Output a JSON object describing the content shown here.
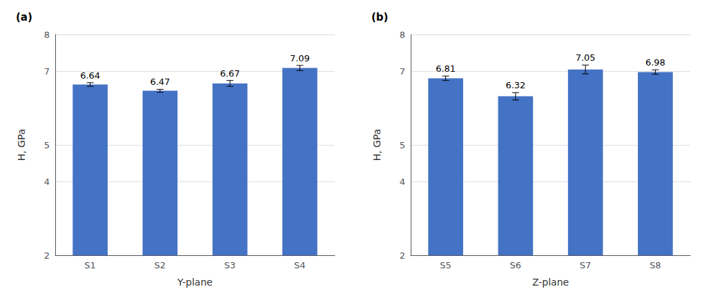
{
  "chart_data": [
    {
      "type": "bar",
      "title": "(a)",
      "categories": [
        "S1",
        "S2",
        "S3",
        "S4"
      ],
      "values": [
        6.64,
        6.47,
        6.67,
        7.09
      ],
      "errors": [
        0.05,
        0.04,
        0.08,
        0.07
      ],
      "xlabel": "Y-plane",
      "ylabel": "H, GPa",
      "color": "#4472C4",
      "ylim": [
        2,
        8
      ],
      "yticks": [
        2,
        4,
        5,
        7,
        8
      ],
      "grid": true,
      "data_labels": true
    },
    {
      "type": "bar",
      "title": "(b)",
      "categories": [
        "S5",
        "S6",
        "S7",
        "S8"
      ],
      "values": [
        6.81,
        6.32,
        7.05,
        6.98
      ],
      "errors": [
        0.06,
        0.1,
        0.12,
        0.06
      ],
      "xlabel": "Z-plane",
      "ylabel": "H, GPa",
      "color": "#4472C4",
      "ylim": [
        2,
        8
      ],
      "yticks": [
        2,
        4,
        5,
        7,
        8
      ],
      "grid": true,
      "data_labels": true
    }
  ]
}
